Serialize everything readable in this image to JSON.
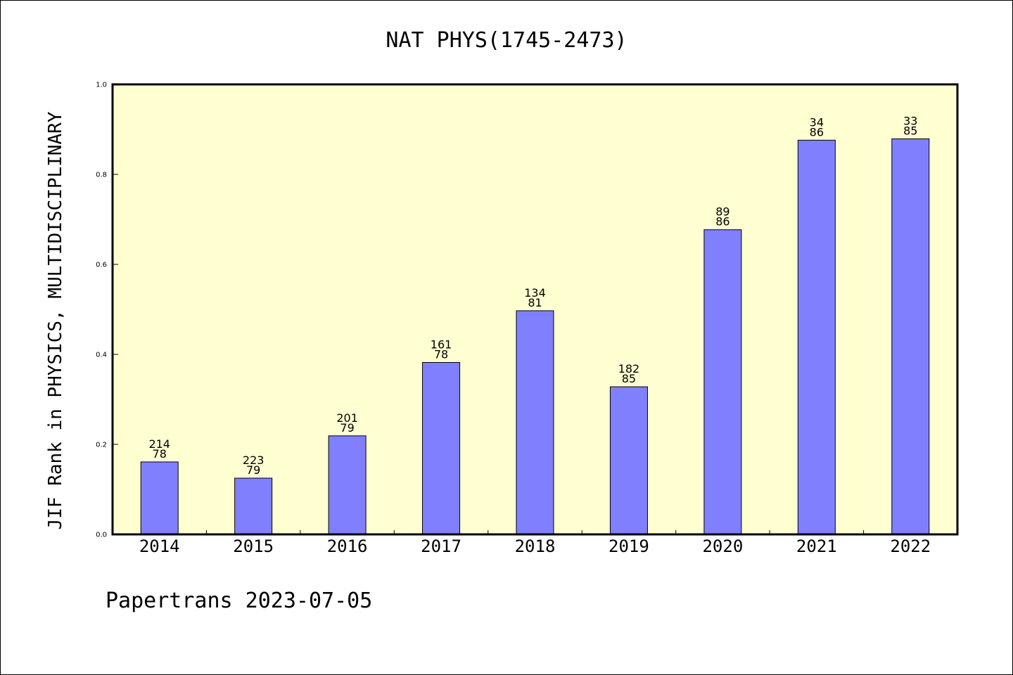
{
  "chart_data": {
    "type": "bar",
    "title": "NAT PHYS(1745-2473)",
    "ylabel": "JIF Rank in PHYSICS, MULTIDISCIPLINARY",
    "xlabel": "",
    "ylim": [
      0,
      1.0
    ],
    "yticks": [
      "0.0",
      "0.2",
      "0.4",
      "0.6",
      "0.8",
      "1.0"
    ],
    "categories": [
      "2014",
      "2015",
      "2016",
      "2017",
      "2018",
      "2019",
      "2020",
      "2021",
      "2022"
    ],
    "values": [
      0.161,
      0.125,
      0.219,
      0.382,
      0.497,
      0.328,
      0.677,
      0.876,
      0.879
    ],
    "labels_top": [
      "214",
      "223",
      "201",
      "161",
      "134",
      "182",
      "89",
      "34",
      "33"
    ],
    "labels_bottom": [
      "78",
      "79",
      "79",
      "78",
      "81",
      "85",
      "86",
      "86",
      "85"
    ],
    "grid": false,
    "colors": {
      "plot_background": "#ffffd2",
      "bar_fill": "#8080ff",
      "bar_stroke": "#000000"
    }
  },
  "footer": {
    "text": "Papertrans 2023-07-05"
  }
}
